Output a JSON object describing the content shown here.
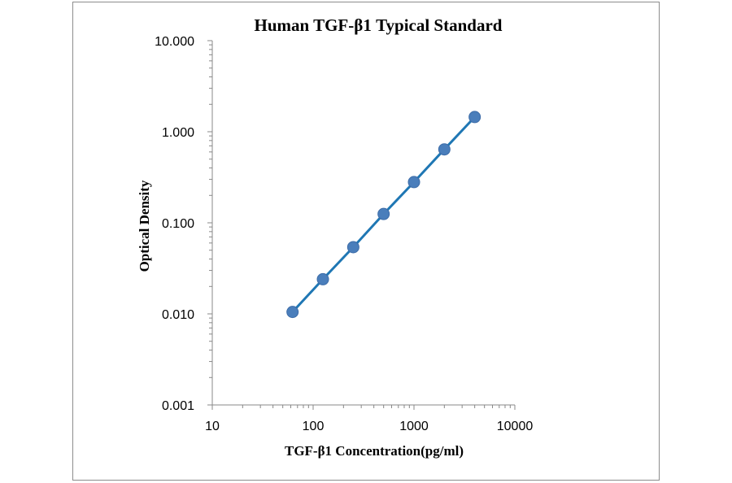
{
  "chart_data": {
    "type": "scatter",
    "title": "Human TGF-β1 Typical Standard",
    "xlabel": "TGF-β1 Concentration(pg/ml)",
    "ylabel": "Optical Density",
    "x_scale": "log",
    "y_scale": "log",
    "xlim": [
      10,
      10000
    ],
    "ylim": [
      0.001,
      10
    ],
    "x_ticks": [
      "10",
      "100",
      "1000",
      "10000"
    ],
    "y_ticks": [
      "10.000",
      "1.000",
      "0.100",
      "0.010",
      "0.001"
    ],
    "grid": false,
    "legend": "none",
    "series": [
      {
        "x": [
          62.5,
          125,
          250,
          500,
          1000,
          2000,
          4000
        ],
        "y": [
          0.0105,
          0.024,
          0.054,
          0.125,
          0.28,
          0.64,
          1.45
        ],
        "trendline": true
      }
    ],
    "colors": {
      "marker": "#4a7ebb",
      "line": "#1f77b4",
      "axis": "#888888"
    }
  }
}
